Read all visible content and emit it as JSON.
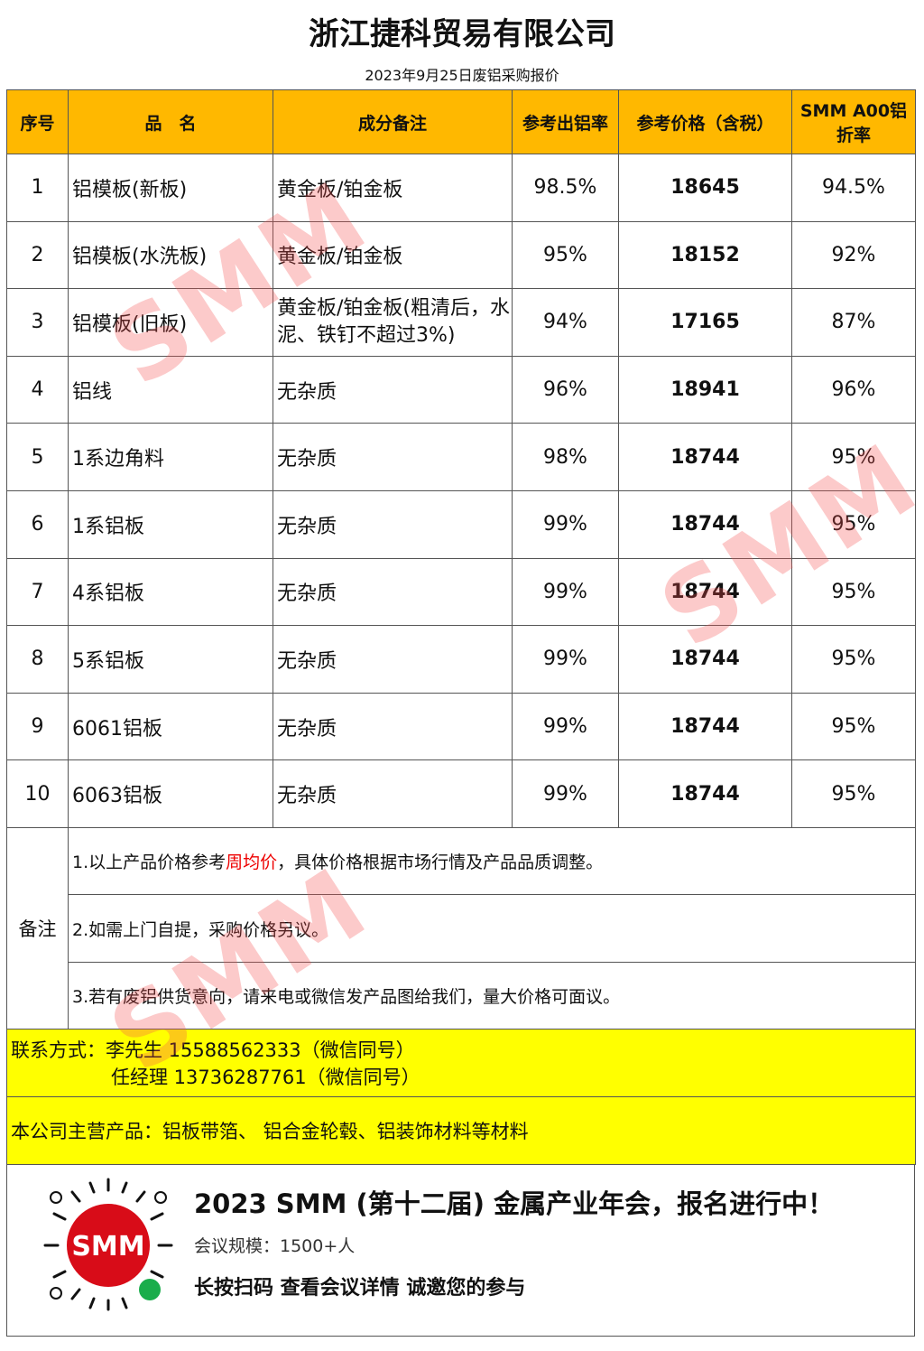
{
  "title": "浙江捷科贸易有限公司",
  "subtitle": "2023年9月25日废铝采购报价",
  "headers": [
    "序号",
    "品　名",
    "成分备注",
    "参考出铝率",
    "参考价格（含税）",
    "SMM A00铝折率"
  ],
  "rows": [
    [
      "1",
      "铝模板(新板)",
      "黄金板/铂金板",
      "98.5%",
      "18645",
      "94.5%"
    ],
    [
      "2",
      "铝模板(水洗板)",
      "黄金板/铂金板",
      "95%",
      "18152",
      "92%"
    ],
    [
      "3",
      "铝模板(旧板)",
      "黄金板/铂金板(粗清后，水泥、铁钉不超过3%)",
      "94%",
      "17165",
      "87%"
    ],
    [
      "4",
      "铝线",
      "无杂质",
      "96%",
      "18941",
      "96%"
    ],
    [
      "5",
      "1系边角料",
      "无杂质",
      "98%",
      "18744",
      "95%"
    ],
    [
      "6",
      "1系铝板",
      "无杂质",
      "99%",
      "18744",
      "95%"
    ],
    [
      "7",
      "4系铝板",
      "无杂质",
      "99%",
      "18744",
      "95%"
    ],
    [
      "8",
      "5系铝板",
      "无杂质",
      "99%",
      "18744",
      "95%"
    ],
    [
      "9",
      "6061铝板",
      "无杂质",
      "99%",
      "18744",
      "95%"
    ],
    [
      "10",
      "6063铝板",
      "无杂质",
      "99%",
      "18744",
      "95%"
    ]
  ],
  "notes": {
    "label": "备注",
    "n1a": "1.以上产品价格参考",
    "n1b": "周均价",
    "n1c": "，具体价格根据市场行情及产品品质调整。",
    "n2": "2.如需上门自提，采购价格另议。",
    "n3": "3.若有废铝供货意向，请来电或微信发产品图给我们，量大价格可面议。"
  },
  "contact": {
    "line1": "联系方式：李先生 15588562333（微信同号）",
    "line2": "任经理 13736287761（微信同号）"
  },
  "products": "本公司主营产品：铝板带箔、 铝合金轮毂、铝装饰材料等材料",
  "banner": {
    "title": "2023 SMM (第十二届) 金属产业年会，报名进行中！",
    "scale": "会议规模：1500+人",
    "cta": "长按扫码  查看会议详情   诚邀您的参与",
    "logo": "SMM"
  },
  "watermark": "SMM",
  "colors": {
    "header": "#ffb800",
    "highlight": "#ffff00",
    "red": "#ee0000"
  }
}
